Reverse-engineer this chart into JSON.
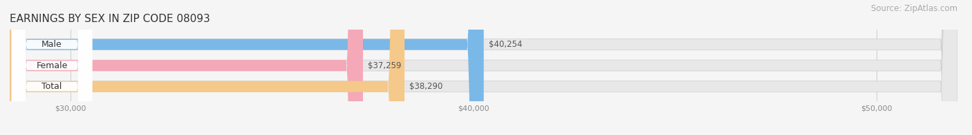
{
  "title": "EARNINGS BY SEX IN ZIP CODE 08093",
  "source": "Source: ZipAtlas.com",
  "categories": [
    "Male",
    "Female",
    "Total"
  ],
  "values": [
    40254,
    37259,
    38290
  ],
  "bar_colors": [
    "#7ab8e8",
    "#f4a8b8",
    "#f5c98a"
  ],
  "bar_bg_color": "#e8e8e8",
  "xlim_min": 28500,
  "xlim_max": 52000,
  "xdata_min": 28500,
  "xticks": [
    30000,
    40000,
    50000
  ],
  "xtick_labels": [
    "$30,000",
    "$40,000",
    "$50,000"
  ],
  "value_labels": [
    "$40,254",
    "$37,259",
    "$38,290"
  ],
  "title_fontsize": 11,
  "source_fontsize": 8.5,
  "label_fontsize": 9,
  "value_fontsize": 8.5,
  "bar_height": 0.52,
  "background_color": "#f5f5f5",
  "label_pill_color": "#ffffff",
  "label_pill_alpha": 0.95
}
